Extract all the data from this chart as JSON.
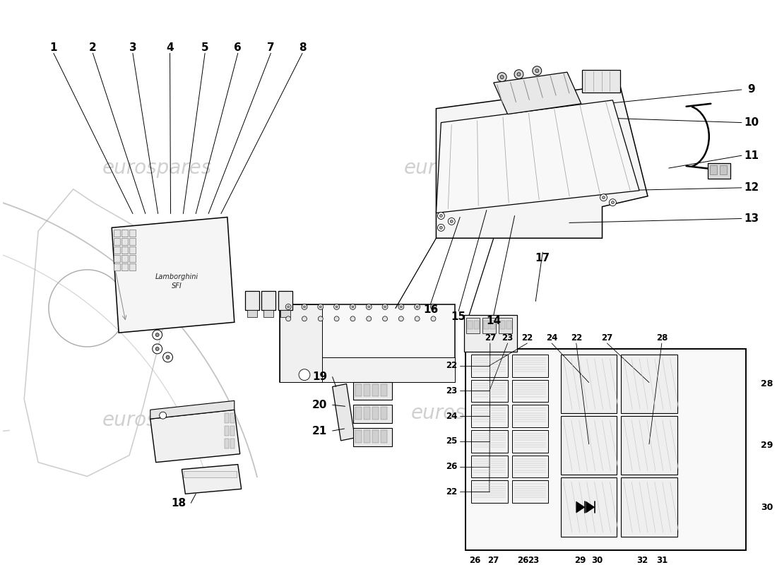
{
  "bg_color": "#ffffff",
  "watermark_color": "#d8d8d8",
  "line_color": "#000000",
  "part_nums_top": [
    "1",
    "2",
    "3",
    "4",
    "5",
    "6",
    "7",
    "8"
  ],
  "part_nums_right": [
    "9",
    "10",
    "11",
    "12",
    "13"
  ],
  "part_nums_mid": [
    "14",
    "15",
    "16",
    "17"
  ],
  "part_nums_bl": [
    "18",
    "19",
    "20",
    "21"
  ],
  "fuse_top": [
    "27",
    "23",
    "22",
    "24",
    "22",
    "27",
    "28"
  ],
  "fuse_left": [
    "22",
    "23",
    "24",
    "25",
    "26",
    "22"
  ],
  "fuse_bot": [
    "26",
    "27",
    "26",
    "23",
    "29",
    "30",
    "32",
    "31"
  ],
  "fuse_right": [
    "29",
    "30"
  ]
}
